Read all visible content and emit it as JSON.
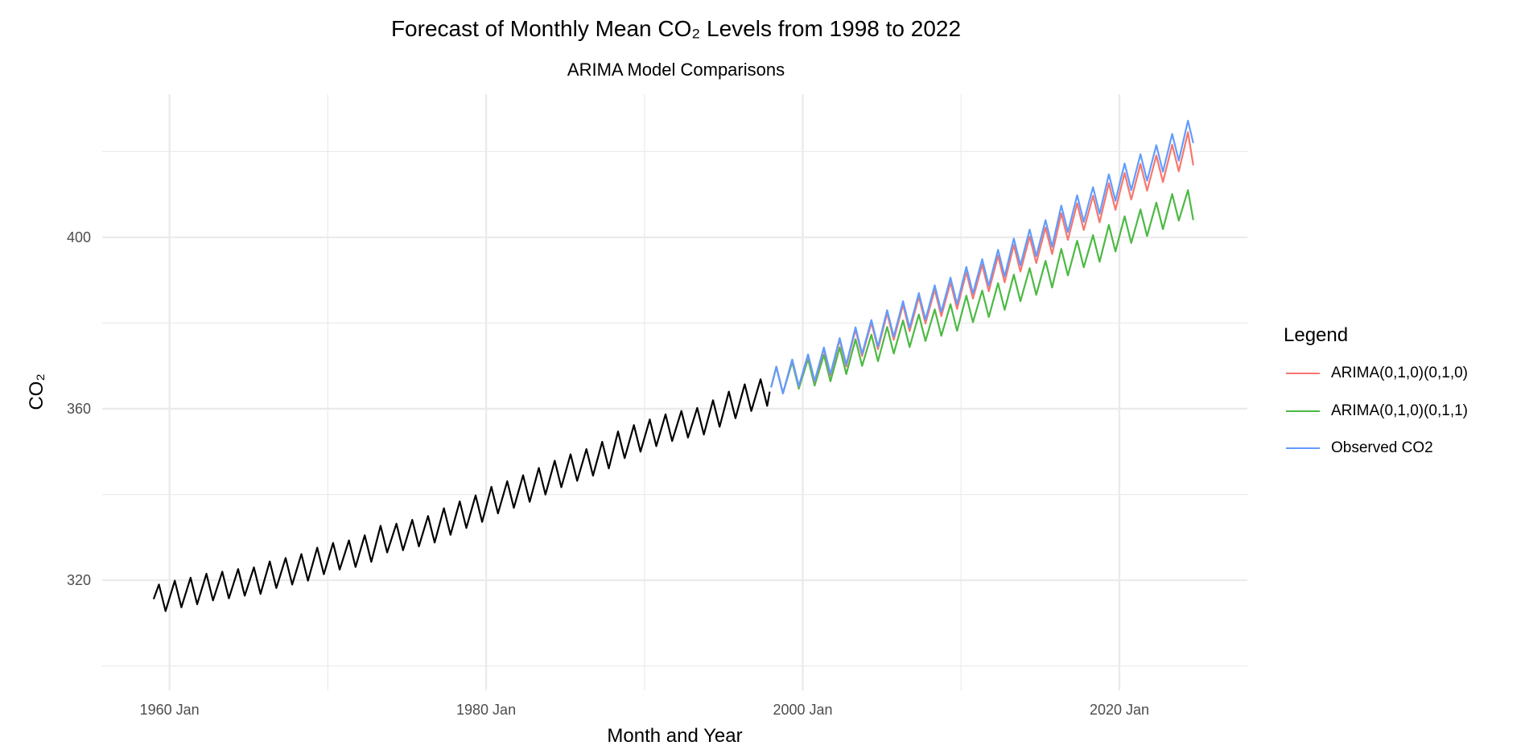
{
  "chart_data": {
    "type": "line",
    "title": "Forecast of Monthly Mean CO₂ Levels from 1998 to 2022",
    "subtitle": "ARIMA Model Comparisons",
    "xlabel": "Month and Year",
    "ylabel": "CO₂",
    "xlim": [
      "1955-10",
      "2028-02"
    ],
    "ylim": [
      294.3,
      433.4
    ],
    "x_ticks": [
      {
        "value": "1960-01",
        "label": "1960 Jan"
      },
      {
        "value": "1980-01",
        "label": "1980 Jan"
      },
      {
        "value": "2000-01",
        "label": "2000 Jan"
      },
      {
        "value": "2020-01",
        "label": "2020 Jan"
      }
    ],
    "x_minor_ticks": [
      "1970-01",
      "1990-01",
      "2010-01"
    ],
    "y_ticks": [
      {
        "value": 320,
        "label": "320"
      },
      {
        "value": 360,
        "label": "360"
      },
      {
        "value": 400,
        "label": "400"
      }
    ],
    "y_minor_ticks": [
      300,
      340,
      380,
      420
    ],
    "grid": true,
    "legend": {
      "title": "Legend",
      "position": "right"
    },
    "history": {
      "color": "#000000",
      "x": [
        "1959-01",
        "1959-05",
        "1959-10",
        "1960-05",
        "1960-10",
        "1961-05",
        "1961-10",
        "1962-05",
        "1962-10",
        "1963-05",
        "1963-10",
        "1964-05",
        "1964-10",
        "1965-05",
        "1965-10",
        "1966-05",
        "1966-10",
        "1967-05",
        "1967-10",
        "1968-05",
        "1968-10",
        "1969-05",
        "1969-10",
        "1970-05",
        "1970-10",
        "1971-05",
        "1971-10",
        "1972-05",
        "1972-10",
        "1973-05",
        "1973-10",
        "1974-05",
        "1974-10",
        "1975-05",
        "1975-10",
        "1976-05",
        "1976-10",
        "1977-05",
        "1977-10",
        "1978-05",
        "1978-10",
        "1979-05",
        "1979-10",
        "1980-05",
        "1980-10",
        "1981-05",
        "1981-10",
        "1982-05",
        "1982-10",
        "1983-05",
        "1983-10",
        "1984-05",
        "1984-10",
        "1985-05",
        "1985-10",
        "1986-05",
        "1986-10",
        "1987-05",
        "1987-10",
        "1988-05",
        "1988-10",
        "1989-05",
        "1989-10",
        "1990-05",
        "1990-10",
        "1991-05",
        "1991-10",
        "1992-05",
        "1992-10",
        "1993-05",
        "1993-10",
        "1994-05",
        "1994-10",
        "1995-05",
        "1995-10",
        "1996-05",
        "1996-10",
        "1997-05",
        "1997-10",
        "1997-12"
      ],
      "values": [
        315.6,
        319.0,
        312.8,
        319.9,
        313.7,
        320.6,
        314.4,
        321.5,
        315.3,
        322.0,
        315.8,
        322.6,
        316.4,
        323.0,
        316.8,
        324.4,
        318.2,
        325.2,
        319.0,
        326.1,
        319.9,
        327.6,
        321.4,
        328.7,
        322.5,
        329.3,
        323.1,
        330.5,
        324.3,
        332.7,
        326.5,
        333.2,
        327.0,
        334.1,
        327.9,
        335.0,
        328.8,
        336.8,
        330.6,
        338.4,
        332.2,
        339.8,
        333.6,
        341.8,
        335.6,
        343.1,
        336.9,
        344.5,
        338.3,
        346.2,
        340.0,
        347.9,
        341.7,
        349.4,
        343.2,
        350.6,
        344.4,
        352.3,
        346.1,
        354.7,
        348.5,
        356.2,
        350.0,
        357.5,
        351.3,
        358.7,
        352.5,
        359.5,
        353.3,
        360.2,
        354.0,
        362.0,
        355.8,
        364.0,
        357.8,
        365.7,
        359.5,
        366.9,
        360.7,
        364.0
      ]
    },
    "forecast_x": [
      "1998-01",
      "1998-05",
      "1998-10",
      "1999-05",
      "1999-10",
      "2000-05",
      "2000-10",
      "2001-05",
      "2001-10",
      "2002-05",
      "2002-10",
      "2003-05",
      "2003-10",
      "2004-05",
      "2004-10",
      "2005-05",
      "2005-10",
      "2006-05",
      "2006-10",
      "2007-05",
      "2007-10",
      "2008-05",
      "2008-10",
      "2009-05",
      "2009-10",
      "2010-05",
      "2010-10",
      "2011-05",
      "2011-10",
      "2012-05",
      "2012-10",
      "2013-05",
      "2013-10",
      "2014-05",
      "2014-10",
      "2015-05",
      "2015-10",
      "2016-05",
      "2016-10",
      "2017-05",
      "2017-10",
      "2018-05",
      "2018-10",
      "2019-05",
      "2019-10",
      "2020-05",
      "2020-10",
      "2021-05",
      "2021-10",
      "2022-05",
      "2022-10",
      "2023-05",
      "2023-10",
      "2024-05",
      "2024-09"
    ],
    "series": [
      {
        "name": "ARIMA(0,1,0)(0,1,0)",
        "color": "#F8766D",
        "values": [
          365.0,
          369.8,
          363.6,
          371.4,
          365.2,
          372.5,
          366.3,
          374.0,
          367.8,
          376.1,
          369.9,
          378.5,
          372.3,
          380.1,
          373.9,
          382.3,
          376.1,
          384.3,
          378.1,
          386.1,
          379.9,
          387.8,
          381.6,
          389.5,
          383.3,
          391.9,
          385.7,
          393.6,
          387.4,
          395.7,
          389.5,
          398.2,
          392.0,
          400.2,
          394.0,
          402.3,
          396.1,
          405.6,
          399.4,
          407.9,
          401.7,
          409.7,
          403.5,
          412.6,
          406.4,
          415.0,
          408.8,
          417.1,
          410.9,
          419.1,
          412.9,
          421.6,
          415.4,
          424.5,
          416.8
        ]
      },
      {
        "name": "ARIMA(0,1,0)(0,1,1)",
        "color": "#4CB944",
        "values": [
          365.0,
          369.8,
          363.6,
          370.9,
          364.7,
          371.6,
          365.4,
          372.6,
          366.4,
          374.3,
          368.1,
          376.2,
          370.0,
          377.3,
          371.1,
          379.1,
          372.9,
          380.6,
          374.4,
          382.0,
          375.8,
          383.2,
          377.0,
          384.4,
          378.2,
          386.4,
          380.2,
          387.6,
          381.4,
          389.3,
          383.1,
          391.3,
          385.1,
          392.8,
          386.6,
          394.5,
          388.3,
          397.3,
          391.1,
          399.2,
          393.0,
          400.5,
          394.3,
          402.9,
          396.7,
          404.9,
          398.7,
          406.5,
          400.3,
          408.1,
          401.9,
          410.1,
          403.9,
          411.0,
          404.0
        ]
      },
      {
        "name": "Observed CO2",
        "color": "#619CFF",
        "values": [
          365.0,
          369.8,
          363.6,
          371.5,
          365.3,
          372.7,
          366.5,
          374.3,
          368.1,
          376.5,
          370.3,
          379.0,
          372.8,
          380.7,
          374.5,
          383.0,
          376.8,
          385.1,
          378.9,
          387.0,
          380.8,
          388.8,
          382.6,
          390.6,
          384.4,
          393.1,
          386.9,
          394.9,
          388.7,
          397.1,
          390.9,
          399.7,
          393.5,
          401.8,
          395.6,
          404.0,
          397.8,
          407.4,
          401.2,
          409.8,
          403.6,
          411.7,
          405.5,
          414.7,
          408.5,
          417.2,
          411.0,
          419.4,
          413.2,
          421.5,
          415.3,
          424.1,
          417.9,
          427.2,
          422.0
        ]
      }
    ]
  }
}
